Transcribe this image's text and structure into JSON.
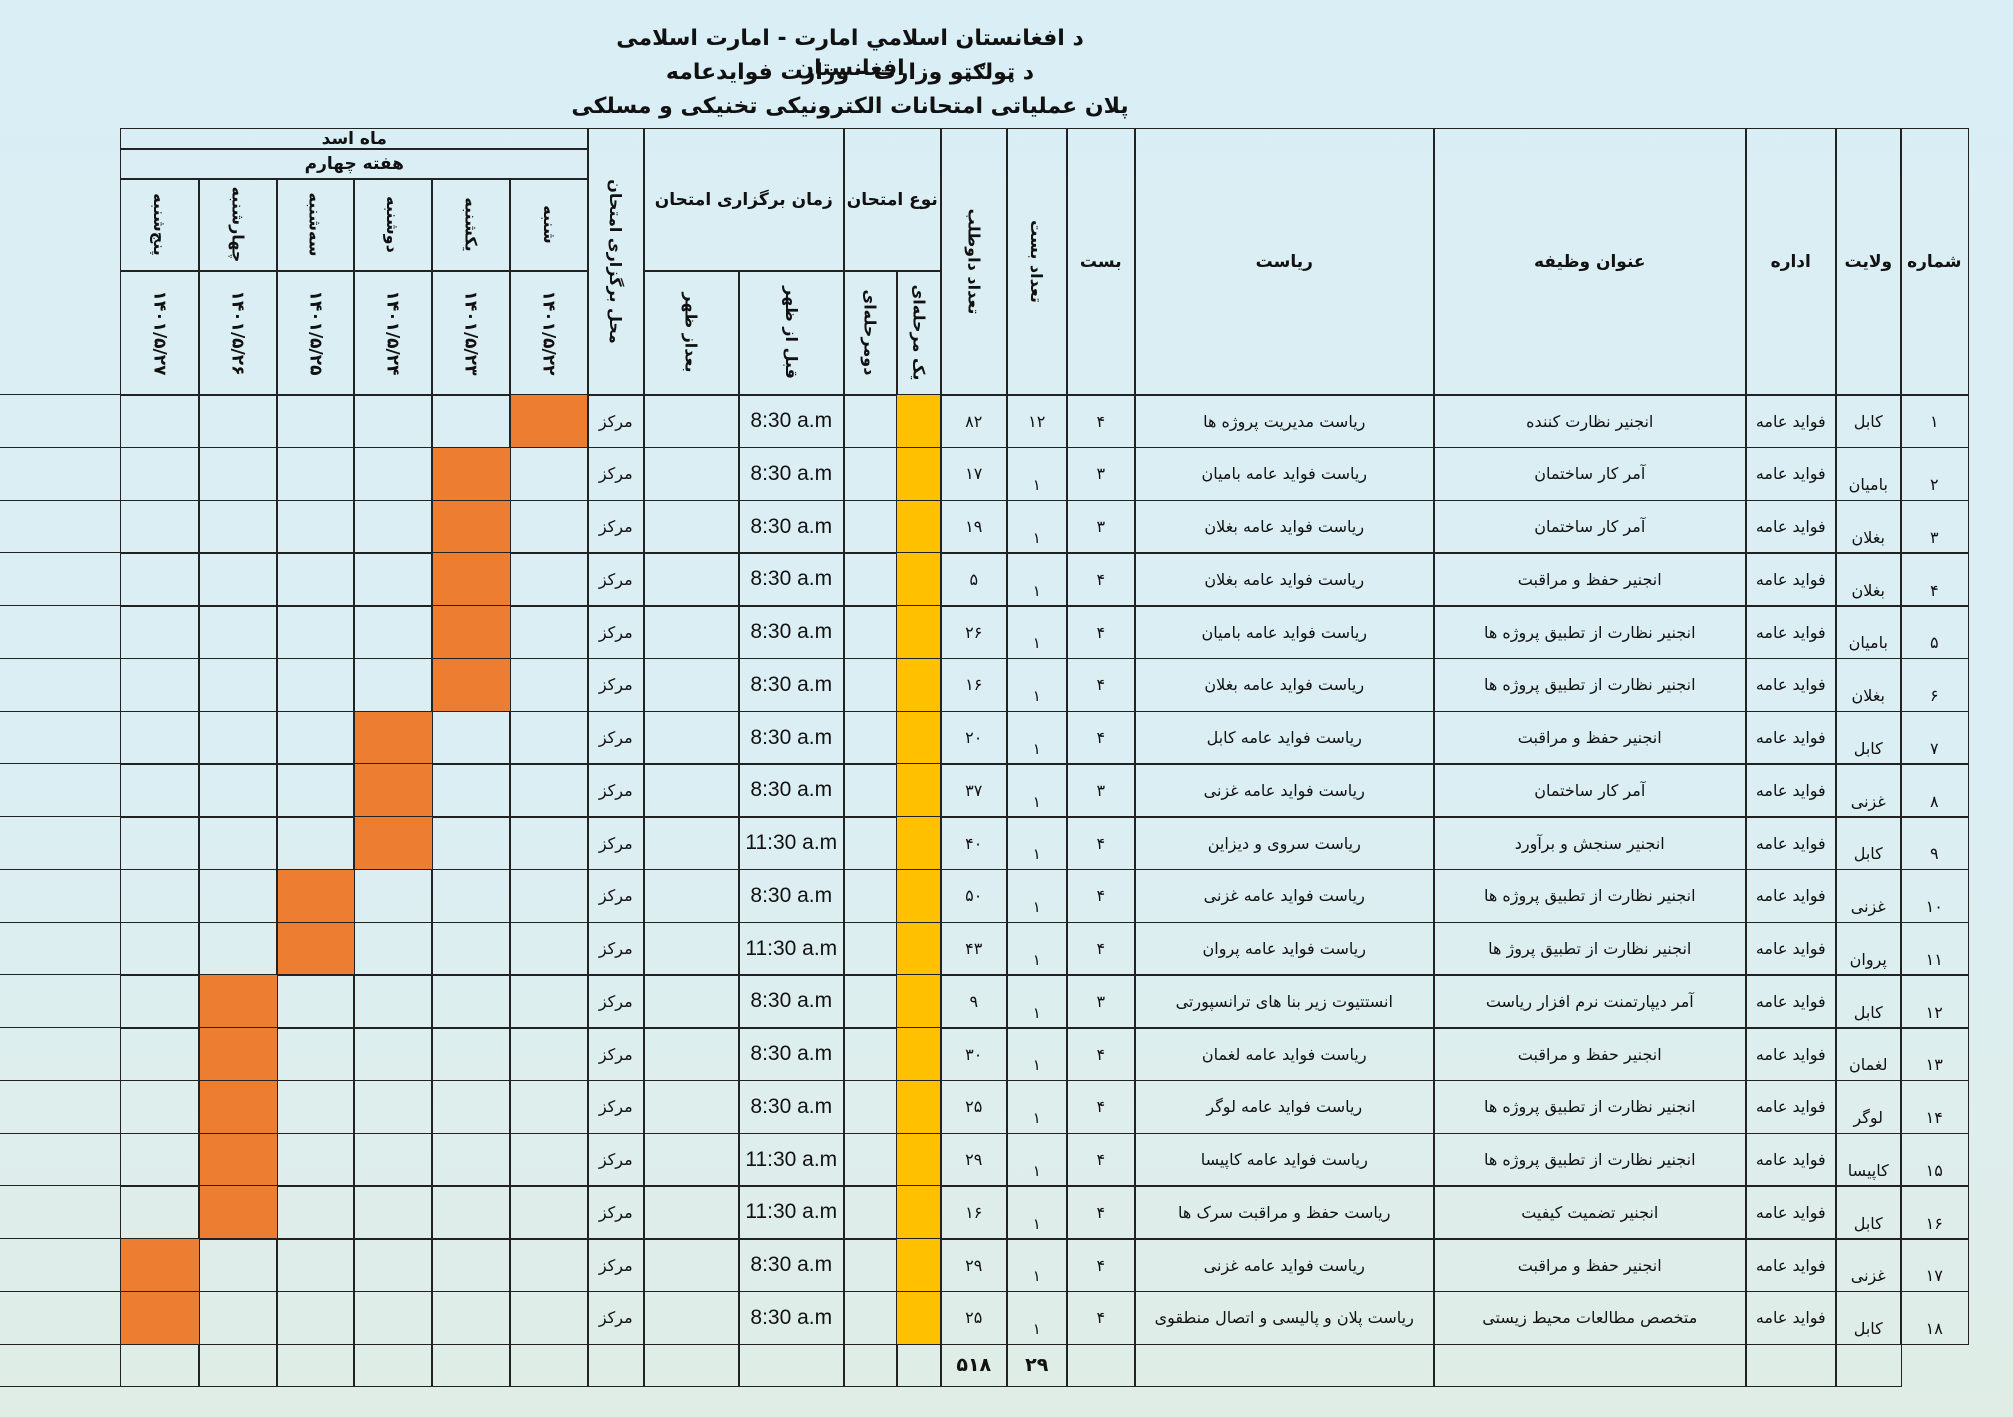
{
  "header": {
    "line1": "د افغانستان اسلامي امارت - امارت اسلامی افغانستان",
    "line2": "د ټولګټو وزارت - وزارت فوایدعامه",
    "line3": "پلان عملیاتی امتحانات الکترونیکی تخنیکی و مسلکی"
  },
  "columns": {
    "number": "شماره",
    "province": "ولایت",
    "department": "اداره",
    "job_title": "عنوان وظیفه",
    "directorate": "ریاست",
    "grade": "بست",
    "posts_count": "تعداد بست",
    "candidates_count": "تعداد داوطلب",
    "exam_type": "نوع امتحان",
    "one_stage": "یک مرحله‌ای",
    "two_stage": "دومرحله‌ای",
    "exam_time": "زمان برگزاری امتحان",
    "before_noon": "قبل از ظهر",
    "after_noon": "بعداز ظهر",
    "exam_location": "محل برگزاری امتحان",
    "month": "ماه اسد",
    "week": "هفته چهارم"
  },
  "days": [
    {
      "name": "شنبه",
      "date": "۱۴۰۱/۵/۲۲"
    },
    {
      "name": "یکشنبه",
      "date": "۱۴۰۱/۵/۲۳"
    },
    {
      "name": "دوشنبه",
      "date": "۱۴۰۱/۵/۲۴"
    },
    {
      "name": "سه‌شنبه",
      "date": "۱۴۰۱/۵/۲۵"
    },
    {
      "name": "چهارشنبه",
      "date": "۱۴۰۱/۵/۲۶"
    },
    {
      "name": "پنج‌شنبه",
      "date": "۱۴۰۱/۵/۲۷"
    }
  ],
  "rows": [
    {
      "no": "۱",
      "province": "کابل",
      "dept": "فواید عامه",
      "job": "انجنیر نظارت کننده",
      "directorate": "ریاست مدیریت پروژه ها",
      "grade": "۴",
      "posts": "۱۲",
      "candidates": "۸۲",
      "time": "8:30 a.m",
      "location": "مرکز",
      "day": 0
    },
    {
      "no": "۲",
      "province": "بامیان",
      "dept": "فواید عامه",
      "job": "آمر کار ساختمان",
      "directorate": "ریاست فواید عامه بامیان",
      "grade": "۳",
      "posts": "۱",
      "candidates": "۱۷",
      "time": "8:30 a.m",
      "location": "مرکز",
      "day": 1
    },
    {
      "no": "۳",
      "province": "بغلان",
      "dept": "فواید عامه",
      "job": "آمر کار ساختمان",
      "directorate": "ریاست فواید عامه بغلان",
      "grade": "۳",
      "posts": "۱",
      "candidates": "۱۹",
      "time": "8:30 a.m",
      "location": "مرکز",
      "day": 1
    },
    {
      "no": "۴",
      "province": "بغلان",
      "dept": "فواید عامه",
      "job": "انجنیر حفظ و مراقبت",
      "directorate": "ریاست فواید عامه بغلان",
      "grade": "۴",
      "posts": "۱",
      "candidates": "۵",
      "time": "8:30 a.m",
      "location": "مرکز",
      "day": 1
    },
    {
      "no": "۵",
      "province": "بامیان",
      "dept": "فواید عامه",
      "job": "انجنیر نظارت از تطبیق پروژه ها",
      "directorate": "ریاست فواید عامه بامیان",
      "grade": "۴",
      "posts": "۱",
      "candidates": "۲۶",
      "time": "8:30 a.m",
      "location": "مرکز",
      "day": 1
    },
    {
      "no": "۶",
      "province": "بغلان",
      "dept": "فواید عامه",
      "job": "انجنیر نظارت از تطبیق پروژه ها",
      "directorate": "ریاست فواید عامه بغلان",
      "grade": "۴",
      "posts": "۱",
      "candidates": "۱۶",
      "time": "8:30 a.m",
      "location": "مرکز",
      "day": 1
    },
    {
      "no": "۷",
      "province": "کابل",
      "dept": "فواید عامه",
      "job": "انجنیر حفظ و مراقبت",
      "directorate": "ریاست فواید عامه کابل",
      "grade": "۴",
      "posts": "۱",
      "candidates": "۲۰",
      "time": "8:30 a.m",
      "location": "مرکز",
      "day": 2
    },
    {
      "no": "۸",
      "province": "غزنی",
      "dept": "فواید عامه",
      "job": "آمر کار ساختمان",
      "directorate": "ریاست فواید عامه غزنی",
      "grade": "۳",
      "posts": "۱",
      "candidates": "۳۷",
      "time": "8:30 a.m",
      "location": "مرکز",
      "day": 2
    },
    {
      "no": "۹",
      "province": "کابل",
      "dept": "فواید عامه",
      "job": "انجنیر سنجش و برآورد",
      "directorate": "ریاست سروی و دیزاین",
      "grade": "۴",
      "posts": "۱",
      "candidates": "۴۰",
      "time": "11:30 a.m",
      "location": "مرکز",
      "day": 2
    },
    {
      "no": "۱۰",
      "province": "غزنی",
      "dept": "فواید عامه",
      "job": "انجنیر نظارت از تطبیق پروژه ها",
      "directorate": "ریاست فواید عامه غزنی",
      "grade": "۴",
      "posts": "۱",
      "candidates": "۵۰",
      "time": "8:30 a.m",
      "location": "مرکز",
      "day": 3
    },
    {
      "no": "۱۱",
      "province": "پروان",
      "dept": "فواید عامه",
      "job": "انجنیر نظارت از تطبیق پروژ ها",
      "directorate": "ریاست فواید عامه پروان",
      "grade": "۴",
      "posts": "۱",
      "candidates": "۴۳",
      "time": "11:30 a.m",
      "location": "مرکز",
      "day": 3
    },
    {
      "no": "۱۲",
      "province": "کابل",
      "dept": "فواید عامه",
      "job": "آمر دیپارتمنت نرم افزار ریاست",
      "directorate": "انستتیوت زیر بنا های ترانسپورتی",
      "grade": "۳",
      "posts": "۱",
      "candidates": "۹",
      "time": "8:30 a.m",
      "location": "مرکز",
      "day": 4
    },
    {
      "no": "۱۳",
      "province": "لغمان",
      "dept": "فواید عامه",
      "job": "انجنیر حفظ و مراقبت",
      "directorate": "ریاست فواید عامه لغمان",
      "grade": "۴",
      "posts": "۱",
      "candidates": "۳۰",
      "time": "8:30 a.m",
      "location": "مرکز",
      "day": 4
    },
    {
      "no": "۱۴",
      "province": "لوگر",
      "dept": "فواید عامه",
      "job": "انجنیر نظارت از تطبیق پروژه ها",
      "directorate": "ریاست فواید عامه لوگر",
      "grade": "۴",
      "posts": "۱",
      "candidates": "۲۵",
      "time": "8:30 a.m",
      "location": "مرکز",
      "day": 4
    },
    {
      "no": "۱۵",
      "province": "کاپیسا",
      "dept": "فواید عامه",
      "job": "انجنیر نظارت از تطبیق پروژه ها",
      "directorate": "ریاست فواید عامه کاپیسا",
      "grade": "۴",
      "posts": "۱",
      "candidates": "۲۹",
      "time": "11:30 a.m",
      "location": "مرکز",
      "day": 4
    },
    {
      "no": "۱۶",
      "province": "کابل",
      "dept": "فواید عامه",
      "job": "انجنیر تضمیت کیفیت",
      "directorate": "ریاست حفظ و مراقبت سرک ها",
      "grade": "۴",
      "posts": "۱",
      "candidates": "۱۶",
      "time": "11:30 a.m",
      "location": "مرکز",
      "day": 4
    },
    {
      "no": "۱۷",
      "province": "غزنی",
      "dept": "فواید عامه",
      "job": "انجنیر حفظ و مراقبت",
      "directorate": "ریاست فواید عامه غزنی",
      "grade": "۴",
      "posts": "۱",
      "candidates": "۲۹",
      "time": "8:30 a.m",
      "location": "مرکز",
      "day": 5
    },
    {
      "no": "۱۸",
      "province": "کابل",
      "dept": "فواید عامه",
      "job": "متخصص مطالعات محیط زیستی",
      "directorate": "ریاست پلان و پالیسی و اتصال منطقوی",
      "grade": "۴",
      "posts": "۱",
      "candidates": "۲۵",
      "time": "8:30 a.m",
      "location": "مرکز",
      "day": 5
    }
  ],
  "totals": {
    "posts": "۲۹",
    "candidates": "۵۱۸"
  },
  "colors": {
    "scheduled_day": "#ed7d31",
    "one_stage_marker": "#ffc000",
    "grid": "#222222"
  }
}
